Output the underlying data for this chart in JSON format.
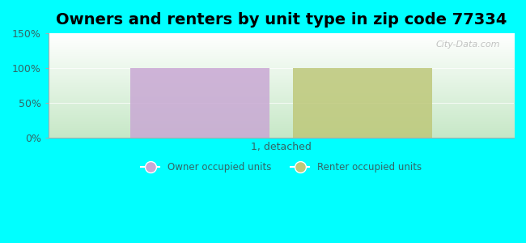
{
  "title": "Owners and renters by unit type in zip code 77334",
  "categories": [
    "1, detached"
  ],
  "owner_values": [
    100
  ],
  "renter_values": [
    100
  ],
  "owner_color": "#c9a8d4",
  "renter_color": "#bec87a",
  "ylim": [
    0,
    150
  ],
  "yticks": [
    0,
    50,
    100,
    150
  ],
  "ytick_labels": [
    "0%",
    "50%",
    "100%",
    "150%"
  ],
  "background_color": "#00FFFF",
  "title_fontsize": 14,
  "axis_label_color": "#336666",
  "watermark_text": "City-Data.com",
  "legend_owner": "Owner occupied units",
  "legend_renter": "Renter occupied units",
  "bar_width": 0.3,
  "bar_gap": 0.05
}
